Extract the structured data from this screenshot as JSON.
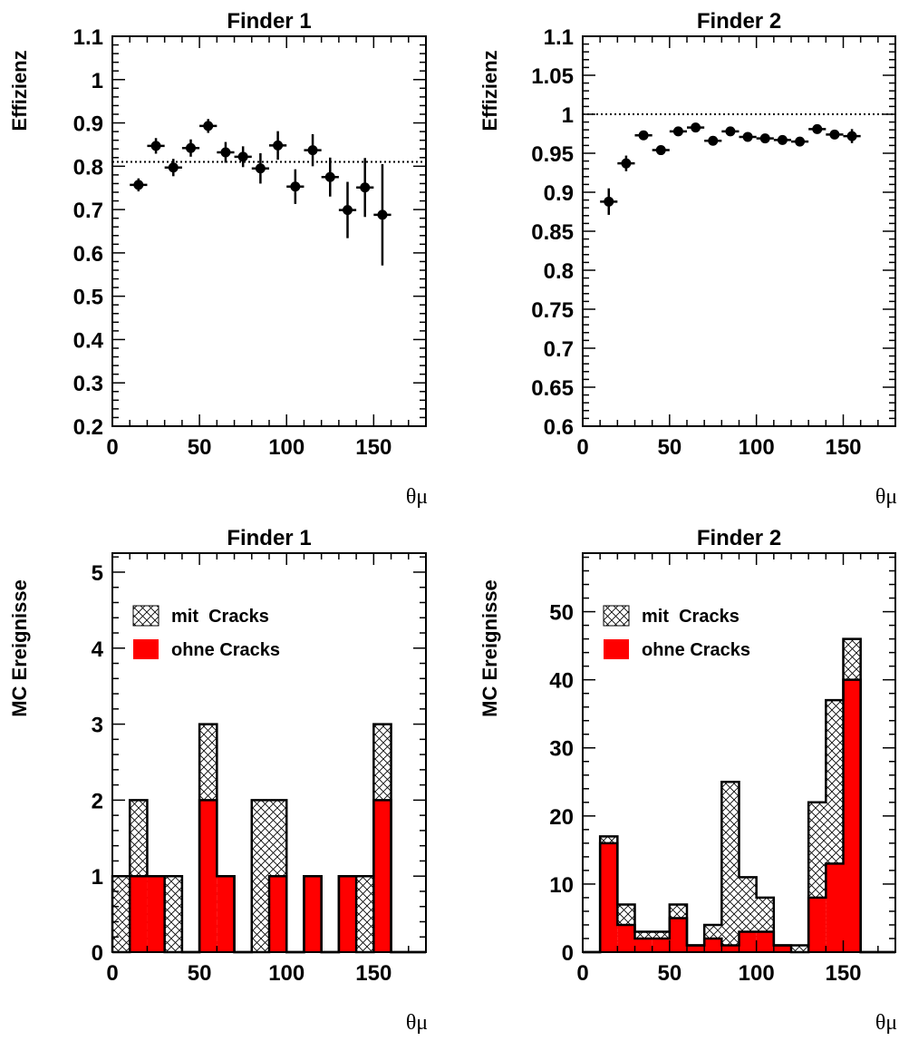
{
  "chart_data": [
    {
      "type": "scatter",
      "title": "Finder 1",
      "ylabel": "Effizienz",
      "xlabel": "θμ",
      "xlim": [
        0,
        180
      ],
      "ylim": [
        0.2,
        1.1
      ],
      "xticks": [
        0,
        50,
        100,
        150
      ],
      "yticks": [
        0.2,
        0.3,
        0.4,
        0.5,
        0.6,
        0.7,
        0.8,
        0.9,
        1.0,
        1.1
      ],
      "ytick_labels": [
        "0.2",
        "0.3",
        "0.4",
        "0.5",
        "0.6",
        "0.7",
        "0.8",
        "0.9",
        "1",
        "1.1"
      ],
      "reference_line": 0.81,
      "series": [
        {
          "x": [
            15,
            25,
            35,
            45,
            55,
            65,
            75,
            85,
            95,
            105,
            115,
            125,
            135,
            145,
            155
          ],
          "y": [
            0.757,
            0.847,
            0.797,
            0.842,
            0.893,
            0.832,
            0.822,
            0.795,
            0.848,
            0.753,
            0.837,
            0.775,
            0.699,
            0.751,
            0.688
          ],
          "yerr": [
            0.015,
            0.018,
            0.02,
            0.02,
            0.016,
            0.024,
            0.024,
            0.035,
            0.033,
            0.04,
            0.037,
            0.045,
            0.065,
            0.068,
            0.117
          ],
          "xerr": 5
        }
      ]
    },
    {
      "type": "scatter",
      "title": "Finder 2",
      "ylabel": "Effizienz",
      "xlabel": "θμ",
      "xlim": [
        0,
        180
      ],
      "ylim": [
        0.6,
        1.1
      ],
      "xticks": [
        0,
        50,
        100,
        150
      ],
      "yticks": [
        0.6,
        0.65,
        0.7,
        0.75,
        0.8,
        0.85,
        0.9,
        0.95,
        1.0,
        1.05,
        1.1
      ],
      "ytick_labels": [
        "0.6",
        "0.65",
        "0.7",
        "0.75",
        "0.8",
        "0.85",
        "0.9",
        "0.95",
        "1",
        "1.05",
        "1.1"
      ],
      "reference_line": 1.0,
      "series": [
        {
          "x": [
            15,
            25,
            35,
            45,
            55,
            65,
            75,
            85,
            95,
            105,
            115,
            125,
            135,
            145,
            155
          ],
          "y": [
            0.888,
            0.937,
            0.973,
            0.954,
            0.978,
            0.983,
            0.966,
            0.978,
            0.971,
            0.969,
            0.967,
            0.965,
            0.981,
            0.974,
            0.972
          ],
          "yerr": [
            0.017,
            0.01,
            0.005,
            0.005,
            0.004,
            0.004,
            0.005,
            0.004,
            0.004,
            0.004,
            0.004,
            0.004,
            0.004,
            0.004,
            0.009
          ],
          "xerr": 5
        }
      ]
    },
    {
      "type": "bar",
      "title": "Finder 1",
      "ylabel": "MC Ereignisse",
      "xlabel": "θμ",
      "xlim": [
        0,
        180
      ],
      "ylim": [
        0,
        5.25
      ],
      "xticks": [
        0,
        50,
        100,
        150
      ],
      "yticks": [
        0,
        1,
        2,
        3,
        4,
        5
      ],
      "ytick_labels": [
        "0",
        "1",
        "2",
        "3",
        "4",
        "5"
      ],
      "bin_edges": [
        0,
        10,
        20,
        30,
        40,
        50,
        60,
        70,
        80,
        90,
        100,
        110,
        120,
        130,
        140,
        150,
        160,
        170,
        180
      ],
      "series": [
        {
          "name": "mit  Cracks",
          "values": [
            1,
            2,
            1,
            1,
            0,
            3,
            1,
            0,
            2,
            2,
            0,
            1,
            0,
            1,
            1,
            3,
            0,
            0
          ]
        },
        {
          "name": "ohne Cracks",
          "values": [
            0,
            1,
            1,
            0,
            0,
            2,
            1,
            0,
            0,
            1,
            0,
            1,
            0,
            1,
            0,
            2,
            0,
            0
          ]
        }
      ],
      "legend": "top-left"
    },
    {
      "type": "bar",
      "title": "Finder 2",
      "ylabel": "MC Ereignisse",
      "xlabel": "θμ",
      "xlim": [
        0,
        180
      ],
      "ylim": [
        0,
        58.6
      ],
      "xticks": [
        0,
        50,
        100,
        150
      ],
      "yticks": [
        0,
        10,
        20,
        30,
        40,
        50
      ],
      "ytick_labels": [
        "0",
        "10",
        "20",
        "30",
        "40",
        "50"
      ],
      "bin_edges": [
        0,
        10,
        20,
        30,
        40,
        50,
        60,
        70,
        80,
        90,
        100,
        110,
        120,
        130,
        140,
        150,
        160,
        170,
        180
      ],
      "series": [
        {
          "name": "mit  Cracks",
          "values": [
            0,
            17,
            7,
            3,
            3,
            7,
            1,
            4,
            25,
            11,
            8,
            1,
            1,
            22,
            37,
            46,
            0,
            0
          ]
        },
        {
          "name": "ohne Cracks",
          "values": [
            0,
            16,
            4,
            2,
            2,
            5,
            1,
            2,
            1,
            3,
            3,
            1,
            0,
            8,
            13,
            40,
            0,
            0
          ]
        }
      ],
      "legend": "top-left"
    }
  ],
  "colors": {
    "ohne_fill": "#ff0000",
    "outline": "#000000",
    "hatch": "#000000",
    "background": "#ffffff"
  }
}
